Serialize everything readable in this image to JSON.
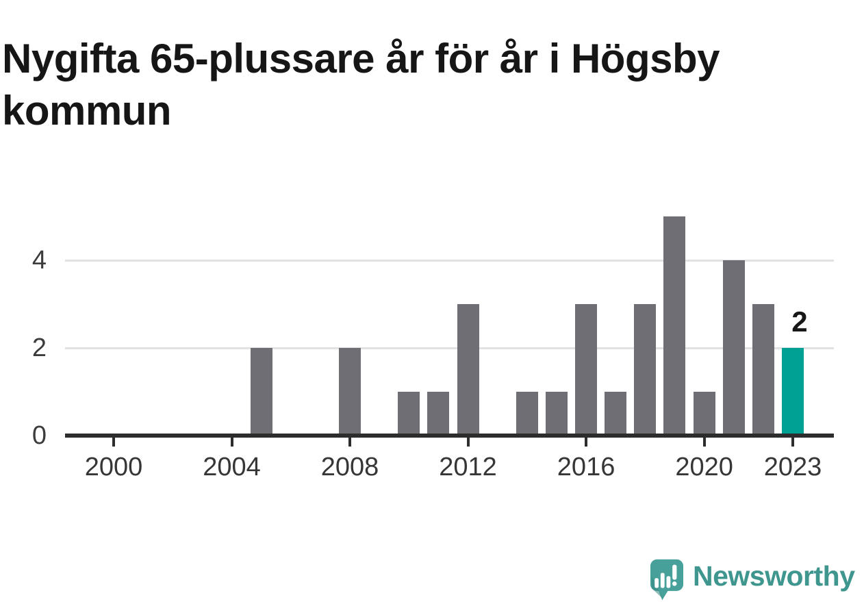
{
  "title": "Nygifta 65-plussare år för år i Högsby kommun",
  "chart_data": {
    "type": "bar",
    "title": "Nygifta 65-plussare år för år i Högsby kommun",
    "xlabel": "",
    "ylabel": "",
    "x": [
      2000,
      2001,
      2002,
      2003,
      2004,
      2005,
      2006,
      2007,
      2008,
      2009,
      2010,
      2011,
      2012,
      2013,
      2014,
      2015,
      2016,
      2017,
      2018,
      2019,
      2020,
      2021,
      2022,
      2023
    ],
    "values": [
      0,
      0,
      0,
      0,
      0,
      2,
      0,
      0,
      2,
      0,
      1,
      1,
      3,
      0,
      1,
      1,
      3,
      1,
      3,
      5,
      1,
      4,
      3,
      2
    ],
    "ylim": [
      0,
      5
    ],
    "yticks": [
      0,
      2,
      4
    ],
    "ytick_labels": [
      "0",
      "2",
      "4"
    ],
    "xticks": [
      2000,
      2004,
      2008,
      2012,
      2016,
      2020,
      2023
    ],
    "xtick_labels": [
      "2000",
      "2004",
      "2008",
      "2012",
      "2016",
      "2020",
      "2023"
    ],
    "grid": "horizontal",
    "legend_position": "none",
    "highlight_year": 2023,
    "annotation": {
      "year": 2023,
      "label": "2"
    },
    "colors": {
      "bar_default": "#6e6e74",
      "bar_highlight": "#00a195",
      "gridline": "#e2e2e2",
      "axis": "#2d2d2d",
      "tick_label": "#3c3c3c",
      "annotation_text": "#171717"
    }
  },
  "branding": {
    "logo_text": "Newsworthy",
    "logo_text_color": "#3f968e",
    "logo_icon_color": "#47a19a",
    "logo_icon_shade_color": "#35867f",
    "logo_icon_name": "newsworthy-speech-bubble-chart-icon"
  }
}
